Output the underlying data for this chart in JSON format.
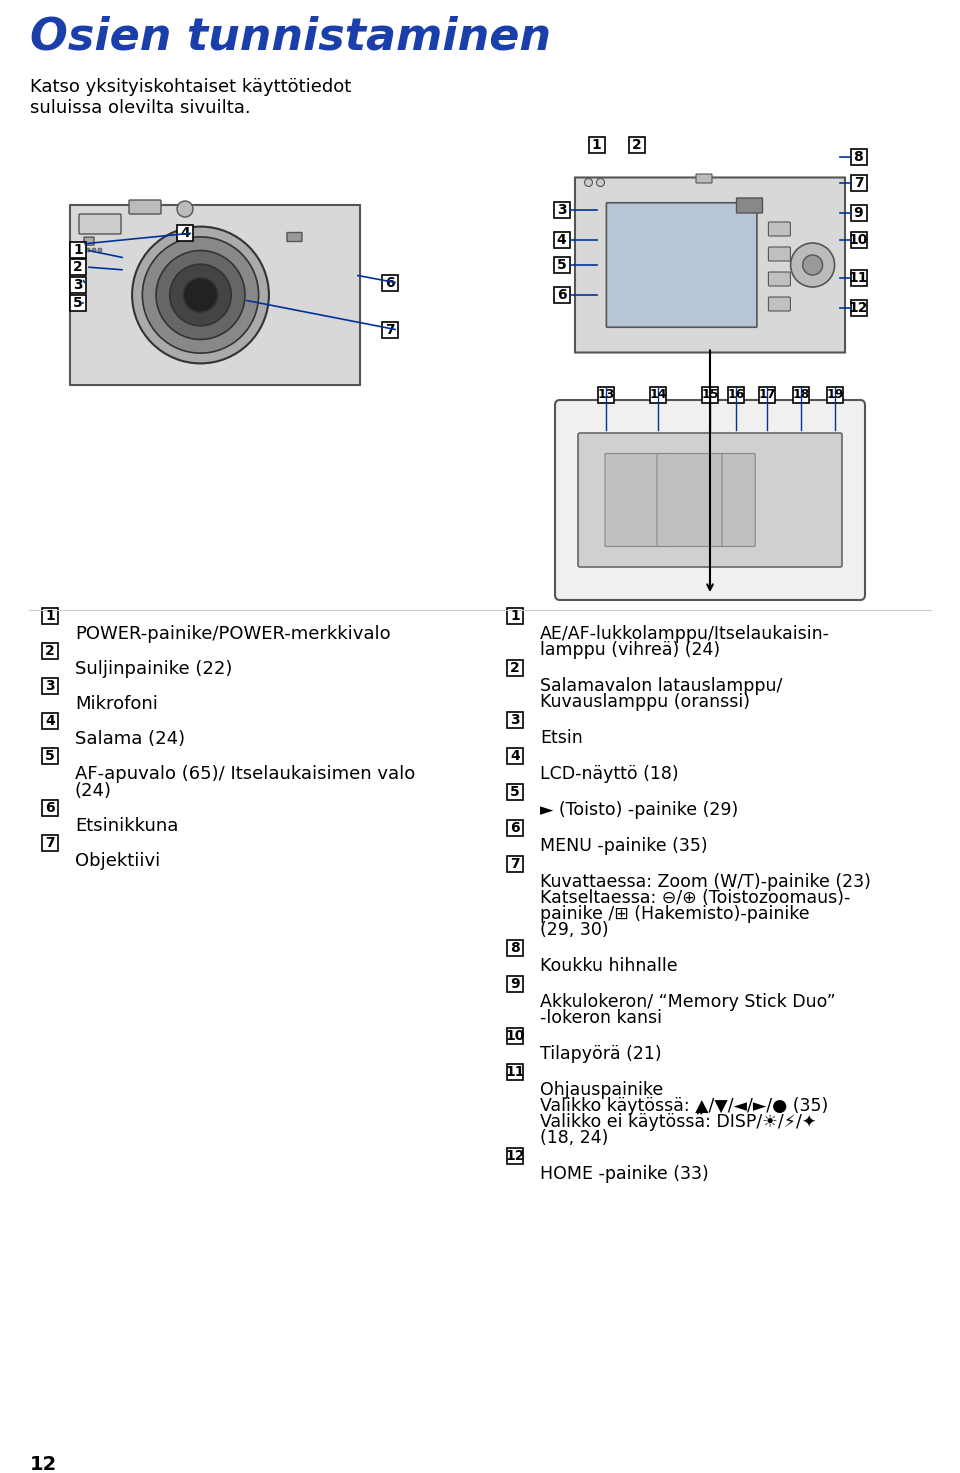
{
  "title": "Osien tunnistaminen",
  "title_color": "#1a3faa",
  "subtitle": "Katso yksityiskohtaiset käyttötiedot\nsuluissa olevilta sivuilta.",
  "bg_color": "#ffffff",
  "left_items": [
    [
      "1",
      "POWER-painike/POWER-merkkivalo"
    ],
    [
      "2",
      "Suljinpainike (22)"
    ],
    [
      "3",
      "Mikrofoni"
    ],
    [
      "4",
      "Salama (24)"
    ],
    [
      "5",
      "AF-apuvalo (65)/ Itselaukaisimen valo\n(24)"
    ],
    [
      "6",
      "Etsinikkuna"
    ],
    [
      "7",
      "Objektiivi"
    ]
  ],
  "right_items": [
    [
      "1",
      "AE/AF-lukkolamppu/Itselaukaisin-\nlamppu (vihreä) (24)"
    ],
    [
      "2",
      "Salamavalon latauslamppu/\nKuvauslamppu (oranssi)"
    ],
    [
      "3",
      "Etsin"
    ],
    [
      "4",
      "LCD-näyttö (18)"
    ],
    [
      "5",
      "► (Toisto) -painike (29)"
    ],
    [
      "6",
      "MENU -painike (35)"
    ],
    [
      "7",
      "Kuvattaessa: Zoom (W/T)-painike (23)\nKatseltaessa: ⊖/⊕ (Toistozoomaus)-\npainike /⊞ (Hakemisto)-painike\n(29, 30)"
    ],
    [
      "8",
      "Koukku hihnalle"
    ],
    [
      "9",
      "Akkulokeron/ “Memory Stick Duo”\n-lokeron kansi"
    ],
    [
      "10",
      "Tilapyörä (21)"
    ],
    [
      "11",
      "Ohjauspainike\nValikko käytössä: ▲/▼/◄/►/● (35)\nValikko ei käytössä: DISP/☀/⚡/✦\n(18, 24)"
    ],
    [
      "12",
      "HOME -painike (33)"
    ]
  ],
  "page_num": "12",
  "label_color": "#000000",
  "box_color": "#000000",
  "line_color": "#003399",
  "diagram_line_color": "#1a3faa"
}
